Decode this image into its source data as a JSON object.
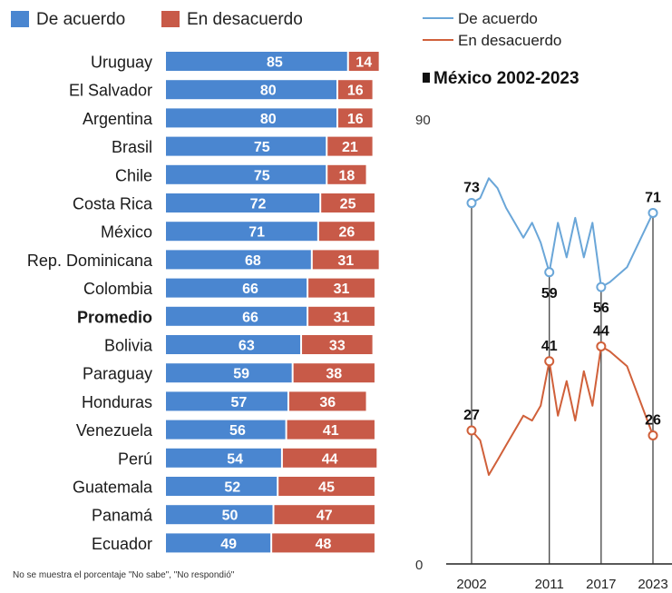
{
  "chart_data": [
    {
      "type": "bar",
      "stacked": true,
      "legend": {
        "placement": "top-left"
      },
      "categories": [
        "Uruguay",
        "El Salvador",
        "Argentina",
        "Brasil",
        "Chile",
        "Costa Rica",
        "México",
        "Rep. Dominicana",
        "Colombia",
        "Promedio",
        "Bolivia",
        "Paraguay",
        "Honduras",
        "Venezuela",
        "Perú",
        "Guatemala",
        "Panamá",
        "Ecuador"
      ],
      "highlight_category": "Promedio",
      "series": [
        {
          "name": "De acuerdo",
          "color": "#4a86d0",
          "values": [
            85,
            80,
            80,
            75,
            75,
            72,
            71,
            68,
            66,
            66,
            63,
            59,
            57,
            56,
            54,
            52,
            50,
            49
          ]
        },
        {
          "name": "En desacuerdo",
          "color": "#c85a48",
          "values": [
            14,
            16,
            16,
            21,
            18,
            25,
            26,
            31,
            31,
            31,
            33,
            38,
            36,
            41,
            44,
            45,
            47,
            48
          ]
        }
      ],
      "note": "No se muestra el porcentaje \"No sabe\", \"No respondió\""
    },
    {
      "type": "line",
      "title": "México 2002-2023",
      "legend": {
        "placement": "top-left"
      },
      "ylim": [
        0,
        90
      ],
      "yticks": [
        "90",
        "0"
      ],
      "xlim": [
        2002,
        2023
      ],
      "xticks": [
        "2002",
        "2011",
        "2017",
        "2023"
      ],
      "series": [
        {
          "name": "De acuerdo",
          "color": "#6aa6d8",
          "points": [
            [
              2002,
              73
            ],
            [
              2003,
              74
            ],
            [
              2004,
              78
            ],
            [
              2005,
              76
            ],
            [
              2006,
              72
            ],
            [
              2007,
              69
            ],
            [
              2008,
              66
            ],
            [
              2009,
              69
            ],
            [
              2010,
              65
            ],
            [
              2011,
              59
            ],
            [
              2012,
              69
            ],
            [
              2013,
              62
            ],
            [
              2014,
              70
            ],
            [
              2015,
              62
            ],
            [
              2016,
              69
            ],
            [
              2017,
              56
            ],
            [
              2018,
              57
            ],
            [
              2020,
              60
            ],
            [
              2023,
              71
            ]
          ]
        },
        {
          "name": "En desacuerdo",
          "color": "#d0603a",
          "points": [
            [
              2002,
              27
            ],
            [
              2003,
              25
            ],
            [
              2004,
              18
            ],
            [
              2005,
              21
            ],
            [
              2006,
              24
            ],
            [
              2007,
              27
            ],
            [
              2008,
              30
            ],
            [
              2009,
              29
            ],
            [
              2010,
              32
            ],
            [
              2011,
              41
            ],
            [
              2012,
              30
            ],
            [
              2013,
              37
            ],
            [
              2014,
              29
            ],
            [
              2015,
              39
            ],
            [
              2016,
              32
            ],
            [
              2017,
              44
            ],
            [
              2018,
              43
            ],
            [
              2020,
              40
            ],
            [
              2023,
              26
            ]
          ]
        }
      ],
      "annotations": [
        {
          "series": "De acuerdo",
          "x": 2002,
          "label": "73"
        },
        {
          "series": "De acuerdo",
          "x": 2011,
          "label": "59"
        },
        {
          "series": "De acuerdo",
          "x": 2017,
          "label": "56"
        },
        {
          "series": "De acuerdo",
          "x": 2023,
          "label": "71"
        },
        {
          "series": "En desacuerdo",
          "x": 2002,
          "label": "27"
        },
        {
          "series": "En desacuerdo",
          "x": 2011,
          "label": "41"
        },
        {
          "series": "En desacuerdo",
          "x": 2017,
          "label": "44"
        },
        {
          "series": "En desacuerdo",
          "x": 2023,
          "label": "26"
        }
      ]
    }
  ]
}
